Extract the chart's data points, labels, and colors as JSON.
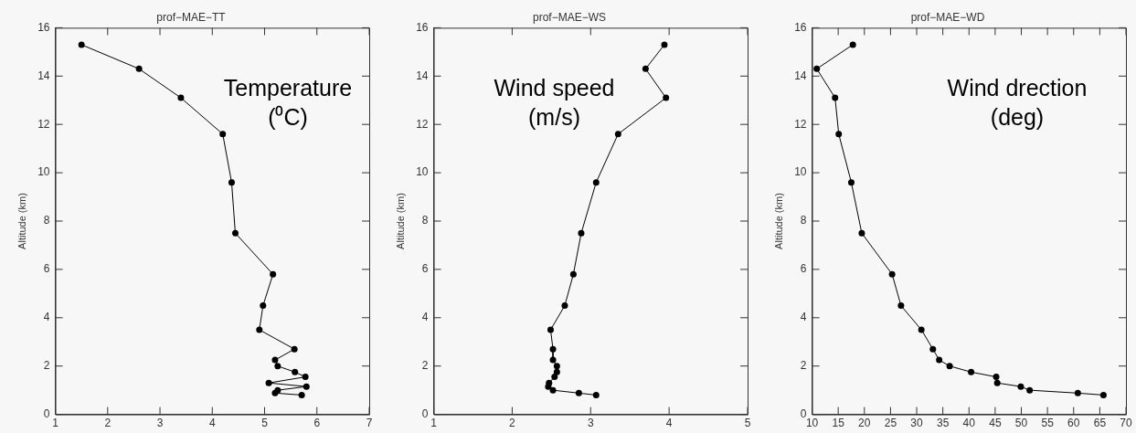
{
  "chart_data": [
    {
      "type": "line",
      "title": "prof−MAE−TT",
      "ylabel": "Altitude (km)",
      "marker": "circle",
      "line_style": "solid",
      "legend": false,
      "xlim": [
        1,
        7
      ],
      "xticks": [
        1,
        2,
        3,
        4,
        5,
        6,
        7
      ],
      "ylim": [
        0,
        16
      ],
      "yticks": [
        0,
        2,
        4,
        6,
        8,
        10,
        12,
        14,
        16
      ],
      "annotations": [
        "Temperature (⁰C)"
      ],
      "series": [
        {
          "color": "#000000",
          "x": [
            1.5,
            2.6,
            3.4,
            4.2,
            4.37,
            4.44,
            5.16,
            4.97,
            4.9,
            5.57,
            5.2,
            5.25,
            5.58,
            5.78,
            5.08,
            5.8,
            5.25,
            5.2,
            5.71
          ],
          "values": [
            15.3,
            14.3,
            13.1,
            11.6,
            9.6,
            7.5,
            5.8,
            4.5,
            3.5,
            2.7,
            2.25,
            2.0,
            1.75,
            1.55,
            1.3,
            1.15,
            1.0,
            0.88,
            0.8
          ]
        }
      ]
    },
    {
      "type": "line",
      "title": "prof−MAE−WS",
      "ylabel": "Altitude (km)",
      "marker": "circle",
      "line_style": "solid",
      "legend": false,
      "xlim": [
        1,
        5
      ],
      "xticks": [
        1,
        2,
        3,
        4,
        5
      ],
      "ylim": [
        0,
        16
      ],
      "yticks": [
        0,
        2,
        4,
        6,
        8,
        10,
        12,
        14,
        16
      ],
      "annotations": [
        "Wind speed (m/s)"
      ],
      "series": [
        {
          "color": "#000000",
          "x": [
            3.94,
            3.7,
            3.96,
            3.35,
            3.07,
            2.88,
            2.78,
            2.67,
            2.49,
            2.52,
            2.52,
            2.57,
            2.57,
            2.54,
            2.47,
            2.46,
            2.52,
            2.85,
            3.07
          ],
          "values": [
            15.3,
            14.3,
            13.1,
            11.6,
            9.6,
            7.5,
            5.8,
            4.5,
            3.5,
            2.7,
            2.25,
            2.0,
            1.75,
            1.55,
            1.3,
            1.15,
            1.0,
            0.88,
            0.8
          ]
        }
      ]
    },
    {
      "type": "line",
      "title": "prof−MAE−WD",
      "ylabel": "Altitude (km)",
      "marker": "circle",
      "line_style": "solid",
      "legend": false,
      "xlim": [
        10,
        70
      ],
      "xticks": [
        10,
        15,
        20,
        25,
        30,
        35,
        40,
        45,
        50,
        55,
        60,
        65,
        70
      ],
      "ylim": [
        0,
        16
      ],
      "yticks": [
        0,
        2,
        4,
        6,
        8,
        10,
        12,
        14,
        16
      ],
      "annotations": [
        "Wind drection (deg)"
      ],
      "series": [
        {
          "color": "#000000",
          "x": [
            17.8,
            10.9,
            14.4,
            15.1,
            17.5,
            19.5,
            25.3,
            27.0,
            30.9,
            33.1,
            34.3,
            36.3,
            40.4,
            45.2,
            45.4,
            49.9,
            51.6,
            60.8,
            65.7
          ],
          "values": [
            15.3,
            14.3,
            13.1,
            11.6,
            9.6,
            7.5,
            5.8,
            4.5,
            3.5,
            2.7,
            2.25,
            2.0,
            1.75,
            1.55,
            1.3,
            1.15,
            1.0,
            0.88,
            0.8
          ]
        }
      ]
    }
  ]
}
